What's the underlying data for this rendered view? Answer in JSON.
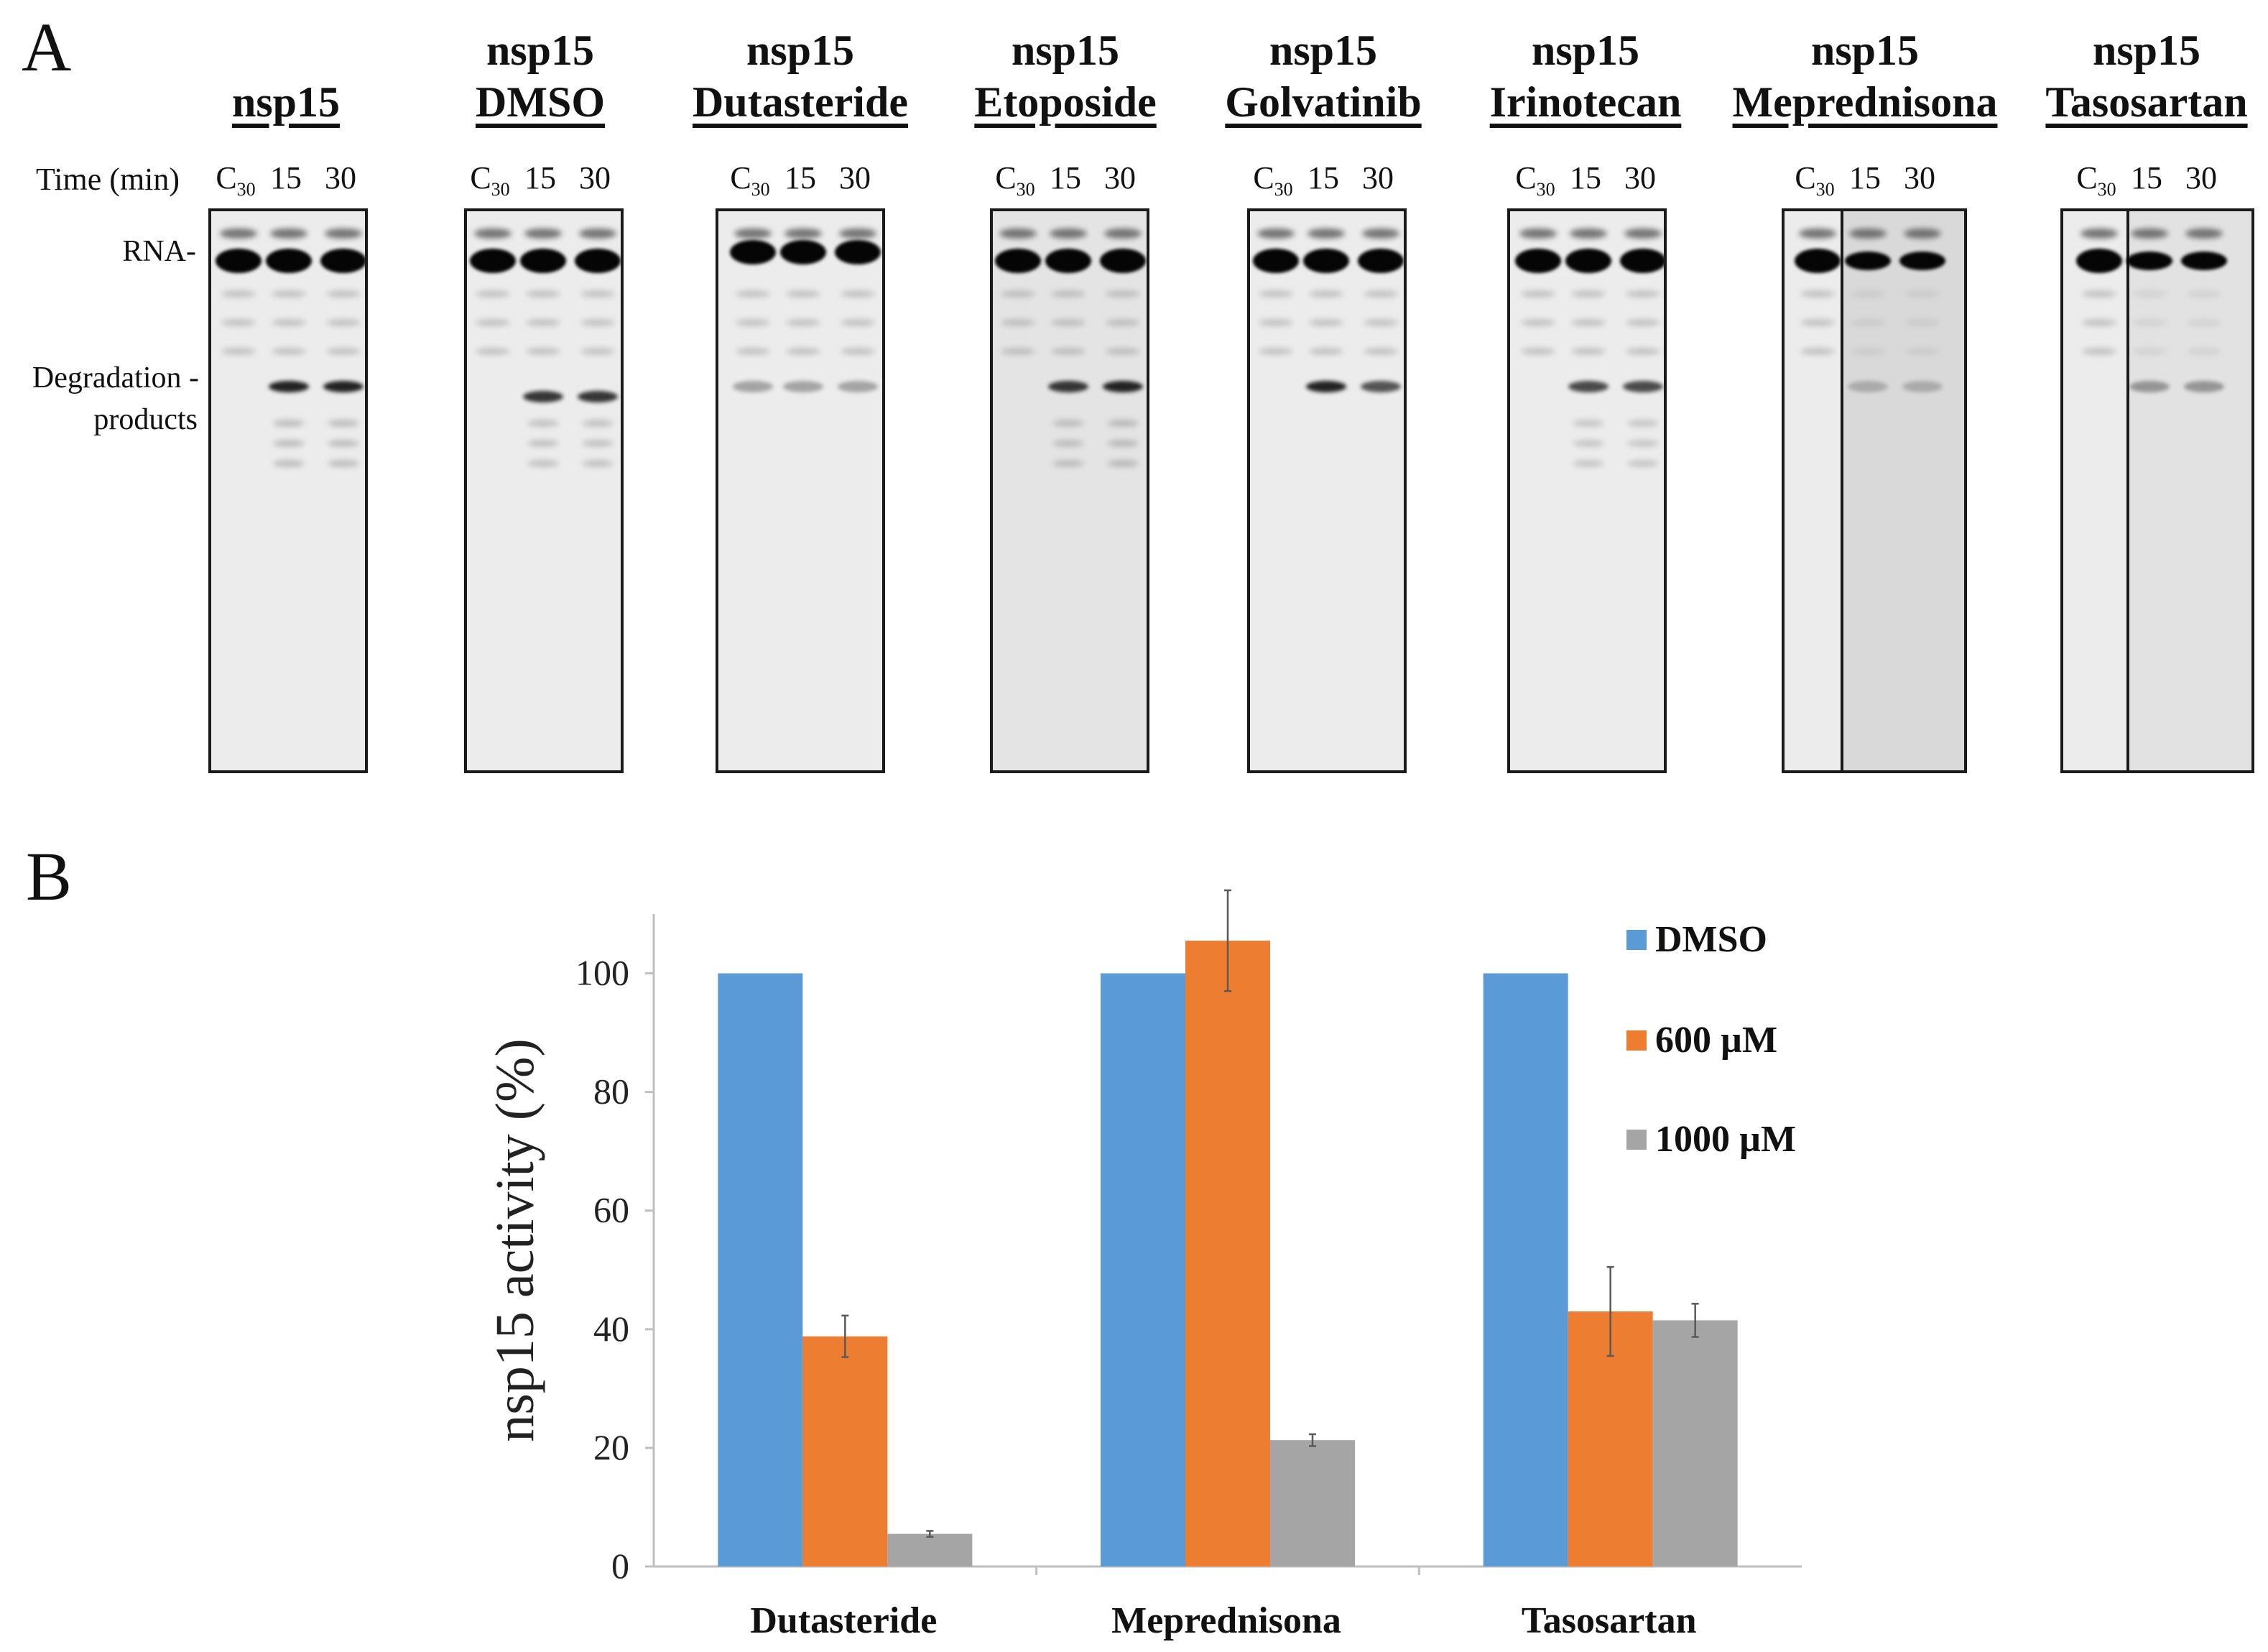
{
  "panel_a": {
    "label": "A",
    "time_label": "Time (min)",
    "rna_label": "RNA-",
    "degradation_label_line1": "Degradation -",
    "degradation_label_line2": "products",
    "lane_c": "C",
    "lane_c_sub": "30",
    "lane_15": "15",
    "lane_30": "30",
    "gels": [
      {
        "line1": "",
        "line2": "nsp15"
      },
      {
        "line1": "nsp15",
        "line2": "DMSO"
      },
      {
        "line1": "nsp15",
        "line2": "Dutasteride"
      },
      {
        "line1": "nsp15",
        "line2": "Etoposide"
      },
      {
        "line1": "nsp15",
        "line2": "Golvatinib"
      },
      {
        "line1": "nsp15",
        "line2": "Irinotecan"
      },
      {
        "line1": "nsp15",
        "line2": "Meprednisona"
      },
      {
        "line1": "nsp15",
        "line2": "Tasosartan"
      }
    ]
  },
  "panel_b": {
    "label": "B"
  },
  "chart_data": {
    "type": "bar",
    "title": "",
    "xlabel": "",
    "ylabel": "nsp15 activity (%)",
    "ylim": [
      0,
      110
    ],
    "yticks": [
      0,
      20,
      40,
      60,
      80,
      100
    ],
    "categories": [
      "Dutasteride",
      "Meprednisona",
      "Tasosartan"
    ],
    "series": [
      {
        "name": "DMSO",
        "color": "#5b9bd5",
        "values": [
          100,
          100,
          100
        ],
        "errors": [
          0,
          0,
          0
        ]
      },
      {
        "name": "600 µM",
        "color": "#ed7d31",
        "values": [
          38.8,
          105.5,
          43
        ],
        "errors": [
          3.5,
          8.5,
          7.5
        ]
      },
      {
        "name": "1000 µM",
        "color": "#a5a5a5",
        "values": [
          5.5,
          21.3,
          41.5
        ],
        "errors": [
          0.5,
          1.0,
          2.8
        ]
      }
    ],
    "legend_position": "top-right",
    "grid": false
  }
}
